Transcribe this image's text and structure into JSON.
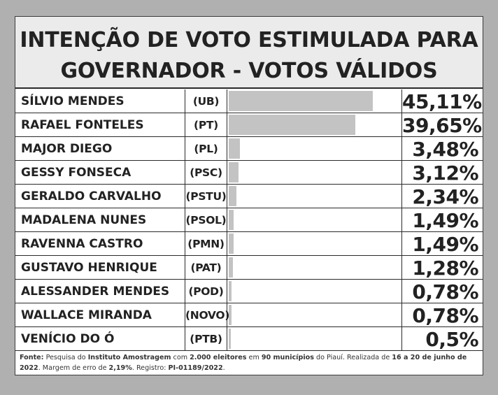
{
  "title": {
    "line1": "INTENÇÃO DE VOTO ESTIMULADA PARA",
    "line2": "GOVERNADOR - VOTOS VÁLIDOS"
  },
  "chart_data": {
    "type": "bar",
    "title": "INTENÇÃO DE VOTO ESTIMULADA PARA GOVERNADOR - VOTOS VÁLIDOS",
    "categories": [
      "SÍLVIO MENDES",
      "RAFAEL FONTELES",
      "MAJOR DIEGO",
      "GESSY FONSECA",
      "GERALDO CARVALHO",
      "MADALENA NUNES",
      "RAVENNA CASTRO",
      "GUSTAVO HENRIQUE",
      "ALESSANDER MENDES",
      "WALLACE MIRANDA",
      "VENÍCIO DO Ó"
    ],
    "parties": [
      "(UB)",
      "(PT)",
      "(PL)",
      "(PSC)",
      "(PSTU)",
      "(PSOL)",
      "(PMN)",
      "(PAT)",
      "(POD)",
      "(NOVO)",
      "(PTB)"
    ],
    "values": [
      45.11,
      39.65,
      3.48,
      3.12,
      2.34,
      1.49,
      1.49,
      1.28,
      0.78,
      0.78,
      0.5
    ],
    "labels": [
      "45,11%",
      "39,65%",
      "3,48%",
      "3,12%",
      "2,34%",
      "1,49%",
      "1,49%",
      "1,28%",
      "0,78%",
      "0,78%",
      "0,5%"
    ],
    "bar_color": "#c3c3c3"
  },
  "footer": {
    "p1": "Fonte:",
    "p2": " Pesquisa do ",
    "p3": "Instituto Amostragem",
    "p4": " com ",
    "p5": "2.000 eleitores",
    "p6": " em ",
    "p7": "90 municípios",
    "p8": " do Piauí. Realizada de ",
    "p9": "16 a 20 de junho de 2022",
    "p10": ". Margem de erro de ",
    "p11": "2,19%",
    "p12": ". Registro: ",
    "p13": "PI-01189/2022",
    "p14": "."
  }
}
